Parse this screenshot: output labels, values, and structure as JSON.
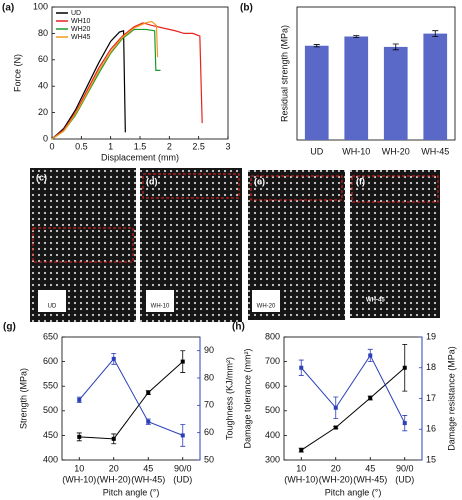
{
  "chart_data": [
    {
      "type": "line",
      "panel_label": "(a)",
      "x_label": "Displacement (mm)",
      "y_label": "Force (N)",
      "xlim": [
        0,
        3
      ],
      "xticks": [
        0,
        0.5,
        1,
        1.5,
        2,
        2.5,
        3
      ],
      "ylim": [
        0,
        100
      ],
      "yticks": [
        0,
        20,
        40,
        60,
        80,
        100
      ],
      "legend": "upper left",
      "series": [
        {
          "name": "UD",
          "color": "#000000",
          "x": [
            0,
            0.2,
            0.4,
            0.6,
            0.8,
            1.0,
            1.15,
            1.22,
            1.25
          ],
          "values": [
            0,
            8,
            22,
            40,
            58,
            74,
            81,
            82,
            5
          ]
        },
        {
          "name": "WH10",
          "color": "#e8231f",
          "x": [
            0,
            0.2,
            0.4,
            0.6,
            0.8,
            1.0,
            1.2,
            1.4,
            1.55,
            1.7,
            1.9,
            2.1,
            2.25,
            2.4,
            2.52,
            2.56
          ],
          "values": [
            0,
            7,
            20,
            37,
            54,
            68,
            78,
            85,
            88,
            86,
            84,
            82,
            80,
            80,
            78,
            12
          ]
        },
        {
          "name": "WH20",
          "color": "#1a9a2a",
          "x": [
            0,
            0.2,
            0.4,
            0.6,
            0.8,
            1.0,
            1.2,
            1.4,
            1.6,
            1.75,
            1.77,
            1.85
          ],
          "values": [
            0,
            6,
            18,
            34,
            50,
            65,
            76,
            83,
            83,
            82,
            52,
            52
          ]
        },
        {
          "name": "WH45",
          "color": "#f29a1c",
          "x": [
            0,
            0.2,
            0.4,
            0.6,
            0.8,
            1.0,
            1.2,
            1.4,
            1.6,
            1.7,
            1.78,
            1.8
          ],
          "values": [
            0,
            6,
            19,
            35,
            52,
            66,
            77,
            84,
            88,
            89,
            86,
            62
          ]
        }
      ]
    },
    {
      "type": "bar",
      "panel_label": "(b)",
      "y_label": "Residual strength (MPa)",
      "categories": [
        "UD",
        "WH-10",
        "WH-20",
        "WH-45"
      ],
      "values": [
        16.3,
        17.9,
        16.1,
        18.4
      ],
      "errors": [
        0.2,
        0.15,
        0.5,
        0.5
      ],
      "color": "#5a68c8",
      "ylim": [
        0,
        23
      ]
    },
    {
      "type": "dual",
      "panel_label": "(g)",
      "x_label": "Pitch angle (°)",
      "y_label": "Strength (MPa)",
      "y2_label": "Toughness (KJ/mm²)",
      "categories": [
        "10",
        "20",
        "45",
        "90/0"
      ],
      "category_notes": [
        "(WH-10)",
        "(WH-20)",
        "(WH-45)",
        "(UD)"
      ],
      "ylim": [
        400,
        650
      ],
      "yticks": [
        400,
        450,
        500,
        550,
        600,
        650
      ],
      "y2lim": [
        50,
        95
      ],
      "y2ticks": [
        50,
        60,
        70,
        80,
        90
      ],
      "series": [
        {
          "color": "#000000",
          "values": [
            447,
            443,
            537,
            600
          ],
          "errors": [
            8,
            10,
            4,
            22
          ]
        },
        {
          "color": "#2b3fb8",
          "axis": "y2",
          "values": [
            72,
            87,
            64,
            59
          ],
          "errors": [
            1,
            2,
            1,
            4
          ]
        }
      ]
    },
    {
      "type": "dual",
      "panel_label": "(h)",
      "x_label": "Pitch angle (°)",
      "y_label": "Damage tolerance (mm²)",
      "y2_label": "Damage resistance (MPa)",
      "categories": [
        "10",
        "20",
        "45",
        "90/0"
      ],
      "category_notes": [
        "(WH-10)",
        "(WH-20)",
        "(WH-45)",
        "(UD)"
      ],
      "ylim": [
        300,
        800
      ],
      "yticks": [
        300,
        400,
        500,
        600,
        700,
        800
      ],
      "y2lim": [
        15,
        19
      ],
      "y2ticks": [
        15,
        16,
        17,
        18,
        19
      ],
      "series": [
        {
          "color": "#000000",
          "values": [
            340,
            432,
            552,
            675
          ],
          "errors": [
            8,
            5,
            8,
            95
          ]
        },
        {
          "color": "#2b3fb8",
          "axis": "y2",
          "values": [
            18.0,
            16.7,
            18.4,
            16.2
          ],
          "errors": [
            0.25,
            0.35,
            0.2,
            0.25
          ]
        }
      ]
    }
  ],
  "photos": [
    {
      "label": "(c)",
      "tag": "UD"
    },
    {
      "label": "(d)",
      "tag": "WH-10"
    },
    {
      "label": "(e)",
      "tag": "WH-20"
    },
    {
      "label": "(f)",
      "tag": "WH-45"
    }
  ]
}
